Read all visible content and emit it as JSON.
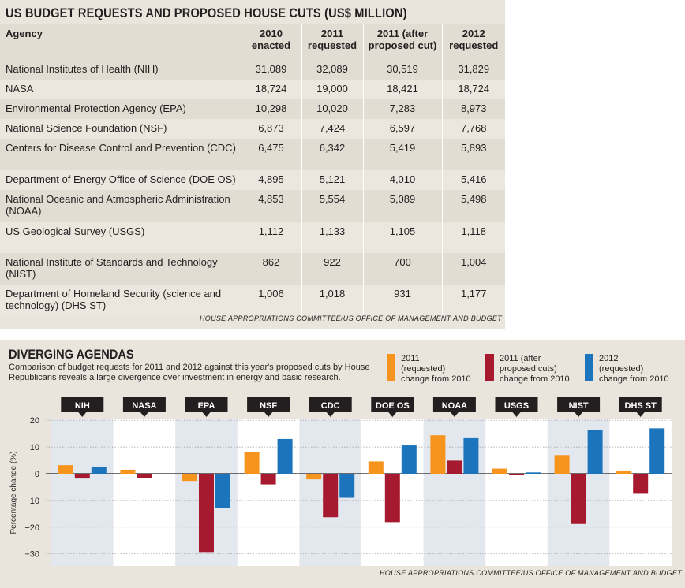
{
  "table": {
    "title": "US BUDGET REQUESTS AND PROPOSED HOUSE CUTS (US$ MILLION)",
    "headers": {
      "agency": "Agency",
      "c1": [
        "2010",
        "enacted"
      ],
      "c2": [
        "2011",
        "requested"
      ],
      "c3": [
        "2011 (after",
        "proposed cut)"
      ],
      "c4": [
        "2012",
        "requested"
      ]
    },
    "rows": [
      {
        "agency": "National Institutes of Health (NIH)",
        "v2010": "31,089",
        "v2011req": "32,089",
        "v2011cut": "30,519",
        "v2012": "31,829"
      },
      {
        "agency": "NASA",
        "v2010": "18,724",
        "v2011req": "19,000",
        "v2011cut": "18,421",
        "v2012": "18,724"
      },
      {
        "agency": "Environmental Protection Agency (EPA)",
        "v2010": "10,298",
        "v2011req": "10,020",
        "v2011cut": "7,283",
        "v2012": "8,973"
      },
      {
        "agency": "National Science Foundation (NSF)",
        "v2010": "6,873",
        "v2011req": "7,424",
        "v2011cut": "6,597",
        "v2012": "7,768"
      },
      {
        "agency": "Centers for Disease Control and Prevention (CDC)",
        "v2010": "6,475",
        "v2011req": "6,342",
        "v2011cut": "5,419",
        "v2012": "5,893"
      },
      {
        "agency": "Department of Energy Office of Science (DOE OS)",
        "v2010": "4,895",
        "v2011req": "5,121",
        "v2011cut": "4,010",
        "v2012": "5,416"
      },
      {
        "agency": "National Oceanic and Atmospheric Administration (NOAA)",
        "v2010": "4,853",
        "v2011req": "5,554",
        "v2011cut": "5,089",
        "v2012": "5,498"
      },
      {
        "agency": "US Geological Survey (USGS)",
        "v2010": "1,112",
        "v2011req": "1,133",
        "v2011cut": "1,105",
        "v2012": "1,118"
      },
      {
        "agency": "National Institute of Standards and Technology (NIST)",
        "v2010": "862",
        "v2011req": "922",
        "v2011cut": "700",
        "v2012": "1,004"
      },
      {
        "agency": "Department of Homeland Security (science and technology) (DHS ST)",
        "v2010": "1,006",
        "v2011req": "1,018",
        "v2011cut": "931",
        "v2012": "1,177"
      }
    ],
    "source": "HOUSE APPROPRIATIONS COMMITTEE/US OFFICE OF MANAGEMENT AND BUDGET"
  },
  "chart": {
    "source": "HOUSE APPROPRIATIONS COMMITTEE/US OFFICE OF MANAGEMENT AND BUDGET",
    "legend": [
      {
        "text": "2011\n(requested)\nchange from 2010"
      },
      {
        "text": "2011 (after\nproposed cuts)\nchange from 2010"
      },
      {
        "text": "2012\n(requested)\nchange from 2010"
      }
    ]
  },
  "chart_data": {
    "type": "bar",
    "title": "DIVERGING AGENDAS",
    "subtitle": "Comparison of budget requests for 2011 and 2012 against this year's proposed cuts by House Republicans reveals a large divergence over investment in energy and basic research.",
    "categories": [
      "NIH",
      "NASA",
      "EPA",
      "NSF",
      "CDC",
      "DOE OS",
      "NOAA",
      "USGS",
      "NIST",
      "DHS ST"
    ],
    "ylabel": "Percentage change (%)",
    "ylim": [
      -32,
      22
    ],
    "yticks": [
      20,
      10,
      0,
      -10,
      -20,
      -30
    ],
    "grid": true,
    "legend_position": "top-right",
    "colors": [
      "#f7941d",
      "#a6192e",
      "#1c75bc"
    ],
    "series": [
      {
        "name": "2011 (requested) change from 2010",
        "values": [
          3.2,
          1.5,
          -2.7,
          8.0,
          -2.1,
          4.6,
          14.4,
          1.9,
          7.0,
          1.2
        ]
      },
      {
        "name": "2011 (after proposed cuts) change from 2010",
        "values": [
          -1.8,
          -1.6,
          -29.3,
          -4.0,
          -16.3,
          -18.1,
          4.9,
          -0.6,
          -18.8,
          -7.5
        ]
      },
      {
        "name": "2012 (requested) change from 2010",
        "values": [
          2.4,
          0.0,
          -12.9,
          13.0,
          -9.0,
          10.6,
          13.3,
          0.5,
          16.5,
          17.0
        ]
      }
    ]
  }
}
